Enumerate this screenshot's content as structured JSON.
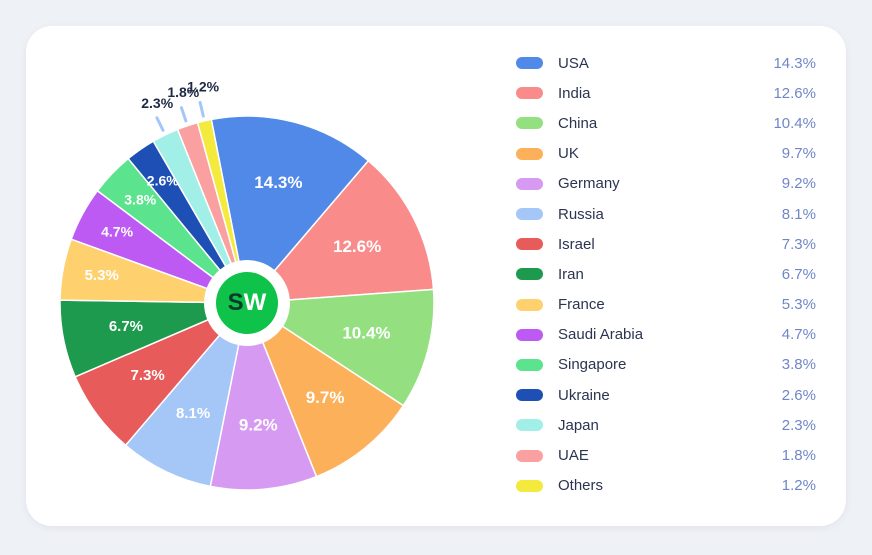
{
  "chart_data": {
    "type": "pie",
    "series": [
      {
        "name": "USA",
        "value": 14.3,
        "label": "14.3%",
        "color": "#5189e8"
      },
      {
        "name": "India",
        "value": 12.6,
        "label": "12.6%",
        "color": "#f98b8b"
      },
      {
        "name": "China",
        "value": 10.4,
        "label": "10.4%",
        "color": "#94e081"
      },
      {
        "name": "UK",
        "value": 9.7,
        "label": "9.7%",
        "color": "#fdb05a"
      },
      {
        "name": "Germany",
        "value": 9.2,
        "label": "9.2%",
        "color": "#d79af2"
      },
      {
        "name": "Russia",
        "value": 8.1,
        "label": "8.1%",
        "color": "#a4c7f7"
      },
      {
        "name": "Israel",
        "value": 7.3,
        "label": "7.3%",
        "color": "#e85b5b"
      },
      {
        "name": "Iran",
        "value": 6.7,
        "label": "6.7%",
        "color": "#1e9a4e"
      },
      {
        "name": "France",
        "value": 5.3,
        "label": "5.3%",
        "color": "#fed16e"
      },
      {
        "name": "Saudi Arabia",
        "value": 4.7,
        "label": "4.7%",
        "color": "#bd5af3"
      },
      {
        "name": "Singapore",
        "value": 3.8,
        "label": "3.8%",
        "color": "#5be38e"
      },
      {
        "name": "Ukraine",
        "value": 2.6,
        "label": "2.6%",
        "color": "#1d4fb5"
      },
      {
        "name": "Japan",
        "value": 2.3,
        "label": "2.3%",
        "color": "#a2efe7"
      },
      {
        "name": "UAE",
        "value": 1.8,
        "label": "1.8%",
        "color": "#fba0a0"
      },
      {
        "name": "Others",
        "value": 1.2,
        "label": "1.2%",
        "color": "#f4ea3e"
      }
    ],
    "legend_placement": "right",
    "center_logo": "SW"
  }
}
